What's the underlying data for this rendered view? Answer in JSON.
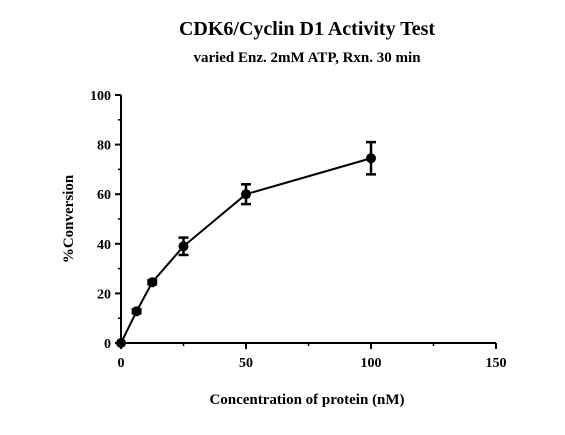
{
  "colors": {
    "background": "#ffffff",
    "ink": "#000000"
  },
  "chart_data": {
    "type": "line",
    "title": "CDK6/Cyclin D1 Activity Test",
    "subtitle": "varied Enz. 2mM ATP, Rxn. 30 min",
    "xlabel": "Concentration of protein (nM)",
    "ylabel": "%Conversion",
    "xlim": [
      0,
      150
    ],
    "ylim": [
      0,
      100
    ],
    "xticks": [
      0,
      50,
      100,
      150
    ],
    "yticks": [
      0,
      20,
      40,
      60,
      80,
      100
    ],
    "x_tick_labels": [
      "0",
      "50",
      "100",
      "150"
    ],
    "y_tick_labels": [
      "0",
      "20",
      "40",
      "60",
      "80",
      "100"
    ],
    "grid": false,
    "series": [
      {
        "x": [
          0,
          6.25,
          12.5,
          25,
          50,
          100
        ],
        "y": [
          0,
          12.8,
          24.5,
          39,
          60,
          74.5
        ],
        "error": [
          0,
          0.8,
          0.8,
          3.5,
          4,
          6.5
        ],
        "marker": "circle",
        "color": "#000000"
      }
    ]
  }
}
